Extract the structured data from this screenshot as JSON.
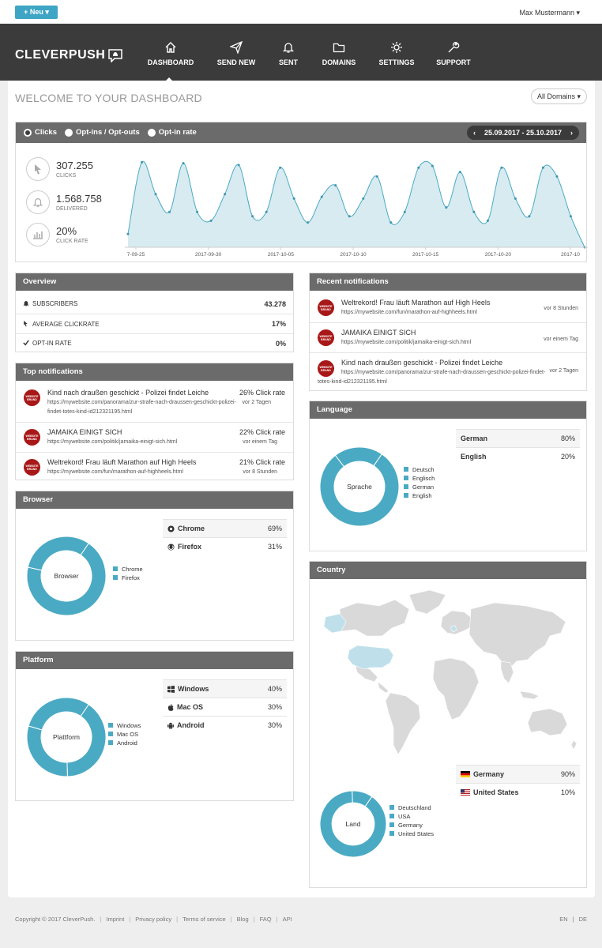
{
  "topbar": {
    "new_label": "+ Neu ▾",
    "user": "Max Mustermann ▾"
  },
  "nav": {
    "logo": "CLEVERPUSH",
    "items": [
      {
        "label": "DASHBOARD",
        "icon": "home-icon"
      },
      {
        "label": "SEND NEW",
        "icon": "paper-plane-icon"
      },
      {
        "label": "SENT",
        "icon": "bell-icon"
      },
      {
        "label": "DOMAINS",
        "icon": "folder-icon"
      },
      {
        "label": "SETTINGS",
        "icon": "gear-icon"
      },
      {
        "label": "SUPPORT",
        "icon": "wrench-icon"
      }
    ]
  },
  "page": {
    "title": "WELCOME TO YOUR DASHBOARD",
    "domain_select": "All Domains ▾"
  },
  "stats": {
    "tabs": [
      "Clicks",
      "Opt-ins / Opt-outs",
      "Opt-in rate"
    ],
    "daterange": "25.09.2017 - 25.10.2017",
    "items": [
      {
        "value": "307.255",
        "label": "CLICKS",
        "icon": "cursor-icon"
      },
      {
        "value": "1.568.758",
        "label": "DELIVERED",
        "icon": "bell-icon"
      },
      {
        "value": "20%",
        "label": "CLICK RATE",
        "icon": "bar-chart-icon"
      }
    ]
  },
  "chart_data": {
    "type": "area",
    "x_tick_labels": [
      "7-09-25",
      "2017-09-30",
      "2017-10-05",
      "2017-10-10",
      "2017-10-15",
      "2017-10-20",
      "2017-10"
    ],
    "values": [
      0.15,
      0.96,
      0.6,
      0.4,
      0.95,
      0.4,
      0.3,
      0.6,
      0.93,
      0.35,
      0.4,
      0.9,
      0.55,
      0.28,
      0.57,
      0.7,
      0.35,
      0.55,
      0.8,
      0.28,
      0.4,
      0.9,
      0.92,
      0.45,
      0.85,
      0.4,
      0.3,
      0.9,
      0.55,
      0.35,
      0.9,
      0.8,
      0.35,
      0.0
    ]
  },
  "overview": {
    "title": "Overview",
    "rows": [
      {
        "icon": "bell-icon",
        "label": "SUBSCRIBERS",
        "value": "43.278"
      },
      {
        "icon": "cursor-icon",
        "label": "AVERAGE CLICKRATE",
        "value": "17%"
      },
      {
        "icon": "check-icon",
        "label": "OPT-IN RATE",
        "value": "0%"
      }
    ]
  },
  "top_notifications": {
    "title": "Top notifications",
    "items": [
      {
        "title": "Kind nach draußen geschickt - Polizei findet Leiche",
        "url": "https://mywebsite.com/panorama/zur-strafe-nach-draussen-geschickt-polizei-findet-totes-kind-id212321195.html",
        "rate": "26% Click rate",
        "time": "vor 2 Tagen"
      },
      {
        "title": "JAMAIKA EINIGT SICH",
        "url": "https://mywebsite.com/politik/jamaika-einigt-sich.html",
        "rate": "22% Click rate",
        "time": "vor einem Tag"
      },
      {
        "title": "Weltrekord! Frau läuft Marathon auf High Heels",
        "url": "https://mywebsite.com/fun/marathon-auf-highheels.html",
        "rate": "21% Click rate",
        "time": "vor 8 Stunden"
      }
    ],
    "brand": "WEBSITE BRAND"
  },
  "recent_notifications": {
    "title": "Recent notifications",
    "items": [
      {
        "title": "Weltrekord! Frau läuft Marathon auf High Heels",
        "url": "https://mywebsite.com/fun/marathon-auf-highheels.html",
        "time": "vor 8 Stunden"
      },
      {
        "title": "JAMAIKA EINIGT SICH",
        "url": "https://mywebsite.com/politik/jamaika-einigt-sich.html",
        "time": "vor einem Tag"
      },
      {
        "title": "Kind nach draußen geschickt - Polizei findet Leiche",
        "url": "https://mywebsite.com/panorama/zur-strafe-nach-draussen-geschickt-polizei-findet-totes-kind-id212321195.html",
        "time": "vor 2 Tagen"
      }
    ]
  },
  "browser": {
    "title": "Browser",
    "center": "Browser",
    "legend": [
      "Chrome",
      "Firefox"
    ],
    "rows": [
      {
        "icon": "chrome-icon",
        "label": "Chrome",
        "value": "69%"
      },
      {
        "icon": "firefox-icon",
        "label": "Firefox",
        "value": "31%"
      }
    ],
    "shares": [
      69,
      31
    ]
  },
  "platform": {
    "title": "Platform",
    "center": "Plattform",
    "legend": [
      "Windows",
      "Mac OS",
      "Android"
    ],
    "rows": [
      {
        "icon": "windows-icon",
        "label": "Windows",
        "value": "40%"
      },
      {
        "icon": "apple-icon",
        "label": "Mac OS",
        "value": "30%"
      },
      {
        "icon": "android-icon",
        "label": "Android",
        "value": "30%"
      }
    ],
    "shares": [
      40,
      30,
      30
    ]
  },
  "language": {
    "title": "Language",
    "center": "Sprache",
    "legend": [
      "Deutsch",
      "Englisch",
      "German",
      "English"
    ],
    "rows": [
      {
        "label": "German",
        "value": "80%"
      },
      {
        "label": "English",
        "value": "20%"
      }
    ],
    "shares": [
      80,
      20
    ]
  },
  "country": {
    "title": "Country",
    "center": "Land",
    "legend": [
      "Deutschland",
      "USA",
      "Germany",
      "United States"
    ],
    "rows": [
      {
        "icon": "germany-flag-icon",
        "label": "Germany",
        "value": "90%"
      },
      {
        "icon": "usa-flag-icon",
        "label": "United States",
        "value": "10%"
      }
    ],
    "shares": [
      90,
      10
    ]
  },
  "colors": {
    "accent": "#4aaac4",
    "header": "#6b6b6b",
    "nav": "#3b3b3b",
    "brand": "#a81818",
    "area_fill": "#d7ebf1"
  },
  "footer": {
    "copyright": "Copyright © 2017 CleverPush.",
    "links": [
      "Imprint",
      "Privacy policy",
      "Terms of service",
      "Blog",
      "FAQ",
      "API"
    ],
    "langs": [
      "EN",
      "DE"
    ]
  }
}
